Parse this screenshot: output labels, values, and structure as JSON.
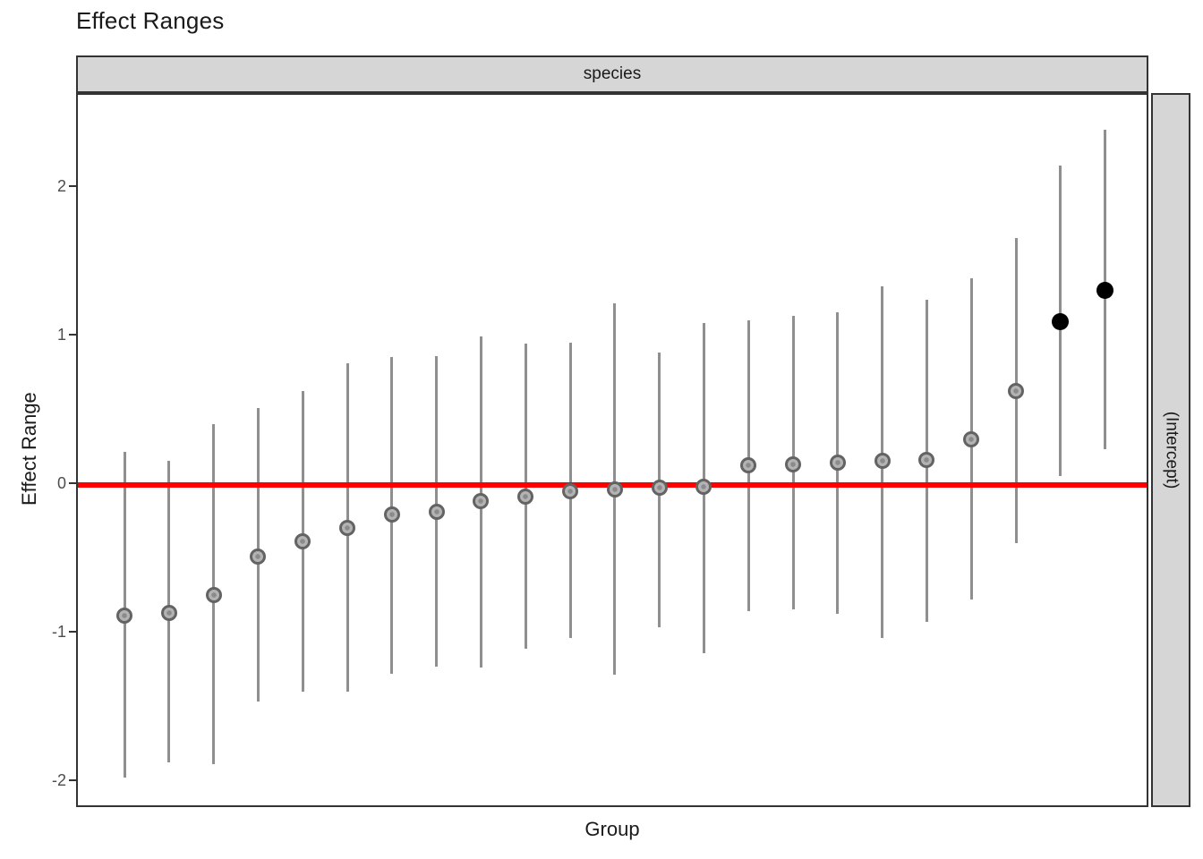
{
  "title": "Effect Ranges",
  "facet": {
    "top": "species",
    "right": "(Intercept)"
  },
  "axes": {
    "x_title": "Group",
    "y_title": "Effect Range",
    "y_ticks": [
      "2",
      "1",
      "0",
      "-1",
      "-2"
    ],
    "y_tick_values": [
      2,
      1,
      0,
      -1,
      -2
    ]
  },
  "reference_line": {
    "y": 0,
    "color": "#ff0000"
  },
  "colors": {
    "error_bar": "#8f8f8f",
    "point_fill": "#b3b3b3",
    "point_outline": "#636363",
    "significant_point": "#000000",
    "strip_fill": "#d6d6d6",
    "panel_border": "#333333"
  },
  "chart_data": {
    "type": "scatter",
    "subtype": "pointrange-caterpillar",
    "title": "Effect Ranges",
    "xlabel": "Group",
    "ylabel": "Effect Range",
    "facet_top": "species",
    "facet_right": "(Intercept)",
    "ylim": [
      -2.2,
      2.62
    ],
    "y_ticks": [
      2,
      1,
      0,
      -1,
      -2
    ],
    "x_axis_type": "discrete-unlabeled",
    "grid": false,
    "legend": "none",
    "reference_line_y": 0,
    "n_points": 23,
    "points": [
      {
        "group_index": 1,
        "estimate": -0.88,
        "ci_low": -1.97,
        "ci_high": 0.22,
        "significant": false
      },
      {
        "group_index": 2,
        "estimate": -0.86,
        "ci_low": -1.87,
        "ci_high": 0.16,
        "significant": false
      },
      {
        "group_index": 3,
        "estimate": -0.74,
        "ci_low": -1.88,
        "ci_high": 0.41,
        "significant": false
      },
      {
        "group_index": 4,
        "estimate": -0.48,
        "ci_low": -1.46,
        "ci_high": 0.52,
        "significant": false
      },
      {
        "group_index": 5,
        "estimate": -0.38,
        "ci_low": -1.39,
        "ci_high": 0.63,
        "significant": false
      },
      {
        "group_index": 6,
        "estimate": -0.29,
        "ci_low": -1.39,
        "ci_high": 0.82,
        "significant": false
      },
      {
        "group_index": 7,
        "estimate": -0.2,
        "ci_low": -1.27,
        "ci_high": 0.86,
        "significant": false
      },
      {
        "group_index": 8,
        "estimate": -0.18,
        "ci_low": -1.22,
        "ci_high": 0.87,
        "significant": false
      },
      {
        "group_index": 9,
        "estimate": -0.11,
        "ci_low": -1.23,
        "ci_high": 1.0,
        "significant": false
      },
      {
        "group_index": 10,
        "estimate": -0.08,
        "ci_low": -1.1,
        "ci_high": 0.95,
        "significant": false
      },
      {
        "group_index": 11,
        "estimate": -0.04,
        "ci_low": -1.03,
        "ci_high": 0.96,
        "significant": false
      },
      {
        "group_index": 12,
        "estimate": -0.03,
        "ci_low": -1.28,
        "ci_high": 1.22,
        "significant": false
      },
      {
        "group_index": 13,
        "estimate": -0.02,
        "ci_low": -0.96,
        "ci_high": 0.89,
        "significant": false
      },
      {
        "group_index": 14,
        "estimate": -0.01,
        "ci_low": -1.13,
        "ci_high": 1.09,
        "significant": false
      },
      {
        "group_index": 15,
        "estimate": 0.13,
        "ci_low": -0.85,
        "ci_high": 1.11,
        "significant": false
      },
      {
        "group_index": 16,
        "estimate": 0.14,
        "ci_low": -0.84,
        "ci_high": 1.14,
        "significant": false
      },
      {
        "group_index": 17,
        "estimate": 0.15,
        "ci_low": -0.87,
        "ci_high": 1.16,
        "significant": false
      },
      {
        "group_index": 18,
        "estimate": 0.16,
        "ci_low": -1.03,
        "ci_high": 1.34,
        "significant": false
      },
      {
        "group_index": 19,
        "estimate": 0.17,
        "ci_low": -0.92,
        "ci_high": 1.25,
        "significant": false
      },
      {
        "group_index": 20,
        "estimate": 0.31,
        "ci_low": -0.77,
        "ci_high": 1.39,
        "significant": false
      },
      {
        "group_index": 21,
        "estimate": 0.63,
        "ci_low": -0.39,
        "ci_high": 1.66,
        "significant": false
      },
      {
        "group_index": 22,
        "estimate": 1.1,
        "ci_low": 0.06,
        "ci_high": 2.15,
        "significant": true
      },
      {
        "group_index": 23,
        "estimate": 1.31,
        "ci_low": 0.24,
        "ci_high": 2.39,
        "significant": true
      }
    ]
  }
}
